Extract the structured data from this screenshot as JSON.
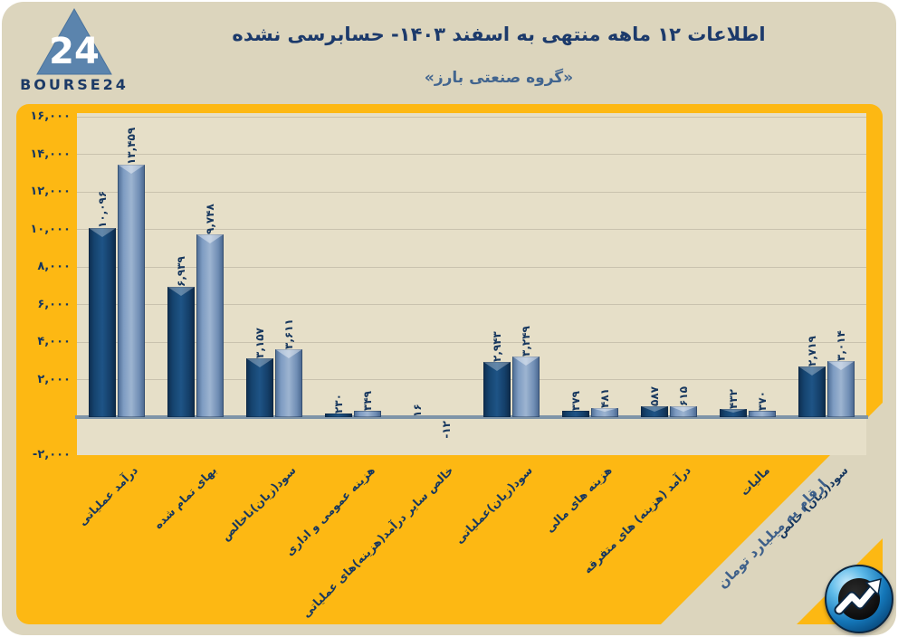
{
  "header": {
    "logo": {
      "brand": "BOURSE24",
      "mark": "24"
    },
    "title": "اطلاعات ۱۲ ماهه منتهی به اسفند ۱۴۰۳- حسابرسی نشده",
    "subtitle": "«گروه صنعتی بارز»"
  },
  "footnote": "ارقام به میلیارد تومان",
  "colors": {
    "panel_beige": "#dcd5bd",
    "plot_beige": "#e6dfc8",
    "frame_orange": "#fdb813",
    "title_navy": "#1c3a6b",
    "subtitle_steel": "#42658f",
    "bar_dark": "#1e5486",
    "bar_light": "#7e9cc2",
    "axis_line": "#7e94a8"
  },
  "chart_data": {
    "type": "bar",
    "title": "اطلاعات ۱۲ ماهه منتهی به اسفند ۱۴۰۳- حسابرسی نشده",
    "subtitle": "«گروه صنعتی بارز»",
    "units_note": "ارقام به میلیارد تومان",
    "legend": "none",
    "grid": true,
    "categories": [
      "درآمد عملیاتی",
      "بهای تمام شده",
      "سود(زیان)ناخالص",
      "هزینه عمومی و اداری",
      "خالص سایر درآمد(هزینه)های عملیاتی",
      "سود(زیان)عملیاتی",
      "هزینه های مالی",
      "درآمد (هزینه) های متفرقه",
      "مالیات",
      "سود(زیان) خالص"
    ],
    "series": [
      {
        "name": "series-dark-blue",
        "color": "#1e5486",
        "values": [
          10096,
          6939,
          3157,
          230,
          16,
          2943,
          379,
          587,
          432,
          2719
        ],
        "value_labels": [
          "۱۰,۰۹۶",
          "۶,۹۳۹",
          "۳,۱۵۷",
          "۲۳۰",
          "۱۶",
          "۲,۹۴۳",
          "۳۷۹",
          "۵۸۷",
          "۴۳۲",
          "۲,۷۱۹"
        ]
      },
      {
        "name": "series-light-blue",
        "color": "#7e9cc2",
        "values": [
          13459,
          9748,
          3611,
          349,
          -12,
          3249,
          481,
          615,
          370,
          3014
        ],
        "value_labels": [
          "۱۳,۴۵۹",
          "۹,۷۴۸",
          "۳,۶۱۱",
          "۳۴۹",
          "-۱۲",
          "۳,۲۴۹",
          "۴۸۱",
          "۶۱۵",
          "۳۷۰",
          "۳,۰۱۴"
        ]
      }
    ],
    "y_axis": {
      "range": [
        -2000,
        16200
      ],
      "ticks": [
        {
          "value": 16000,
          "label": "۱۶,۰۰۰"
        },
        {
          "value": 14000,
          "label": "۱۴,۰۰۰"
        },
        {
          "value": 12000,
          "label": "۱۲,۰۰۰"
        },
        {
          "value": 10000,
          "label": "۱۰,۰۰۰"
        },
        {
          "value": 8000,
          "label": "۸,۰۰۰"
        },
        {
          "value": 6000,
          "label": "۶,۰۰۰"
        },
        {
          "value": 4000,
          "label": "۴,۰۰۰"
        },
        {
          "value": 2000,
          "label": "۲,۰۰۰"
        },
        {
          "value": -2000,
          "label": "-۲,۰۰۰"
        }
      ]
    }
  }
}
